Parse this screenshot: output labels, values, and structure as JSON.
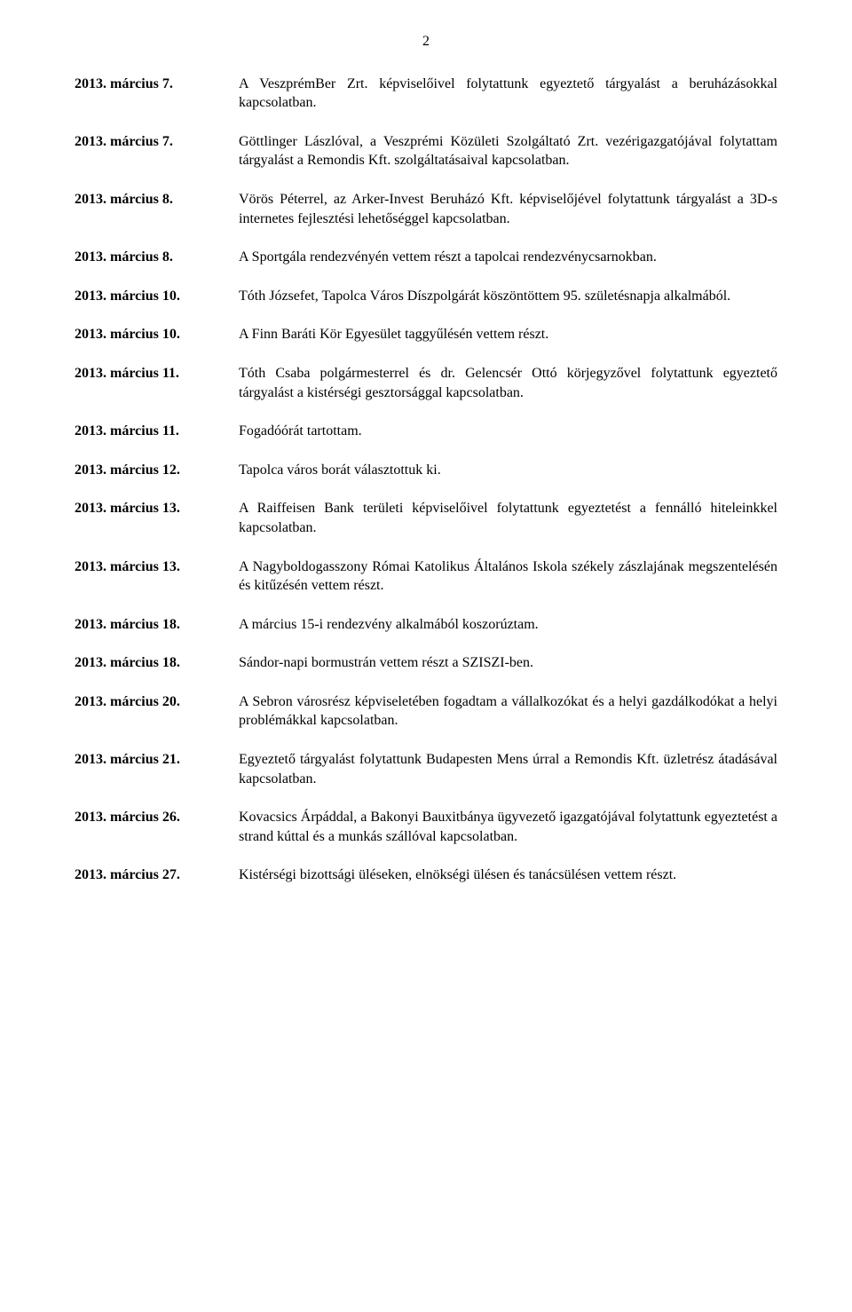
{
  "page_number": "2",
  "entries": [
    {
      "date": "2013. március 7.",
      "text": "A VeszprémBer Zrt. képviselőivel folytattunk egyeztető tárgyalást a beruházásokkal kapcsolatban."
    },
    {
      "date": "2013. március 7.",
      "text": "Göttlinger Lászlóval, a Veszprémi Közületi Szolgáltató Zrt. vezérigazgatójával folytattam tárgyalást a Remondis Kft. szolgáltatásaival kapcsolatban."
    },
    {
      "date": "2013. március 8.",
      "text": "Vörös Péterrel, az Arker-Invest Beruházó Kft. képviselőjével folytattunk tárgyalást a 3D-s internetes fejlesztési lehetőséggel kapcsolatban."
    },
    {
      "date": "2013. március 8.",
      "text": "A Sportgála rendezvényén vettem részt a tapolcai rendezvénycsarnokban."
    },
    {
      "date": "2013. március 10.",
      "text": "Tóth Józsefet, Tapolca Város Díszpolgárát köszöntöttem 95. születésnapja alkalmából."
    },
    {
      "date": "2013. március 10.",
      "text": "A Finn Baráti Kör Egyesület taggyűlésén vettem részt."
    },
    {
      "date": "2013. március 11.",
      "text": "Tóth Csaba polgármesterrel és dr. Gelencsér Ottó körjegyzővel folytattunk egyeztető tárgyalást a kistérségi gesztorsággal kapcsolatban."
    },
    {
      "date": "2013. március 11.",
      "text": "Fogadóórát tartottam."
    },
    {
      "date": "2013. március 12.",
      "text": "Tapolca város borát választottuk ki."
    },
    {
      "date": "2013. március 13.",
      "text": "A Raiffeisen Bank területi képviselőivel folytattunk egyeztetést a fennálló hiteleinkkel kapcsolatban."
    },
    {
      "date": "2013. március 13.",
      "text": "A Nagyboldogasszony Római Katolikus Általános Iskola székely zászlajának megszentelésén és kitűzésén vettem részt."
    },
    {
      "date": "2013. március 18.",
      "text": "A március 15-i rendezvény alkalmából koszorúztam."
    },
    {
      "date": "2013. március 18.",
      "text": "Sándor-napi bormustrán vettem részt a SZISZI-ben."
    },
    {
      "date": "2013. március 20.",
      "text": "A Sebron városrész képviseletében fogadtam a vállalkozókat és a helyi gazdálkodókat a helyi problémákkal kapcsolatban."
    },
    {
      "date": "2013. március 21.",
      "text": "Egyeztető tárgyalást folytattunk Budapesten Mens úrral a Remondis Kft. üzletrész átadásával kapcsolatban."
    },
    {
      "date": "2013. március 26.",
      "text": "Kovacsics Árpáddal, a Bakonyi Bauxitbánya ügyvezető igazgatójával folytattunk egyeztetést a strand kúttal és a munkás szállóval kapcsolatban."
    },
    {
      "date": "2013. március 27.",
      "text": "Kistérségi bizottsági üléseken, elnökségi ülésen és tanácsülésen vettem részt."
    }
  ]
}
